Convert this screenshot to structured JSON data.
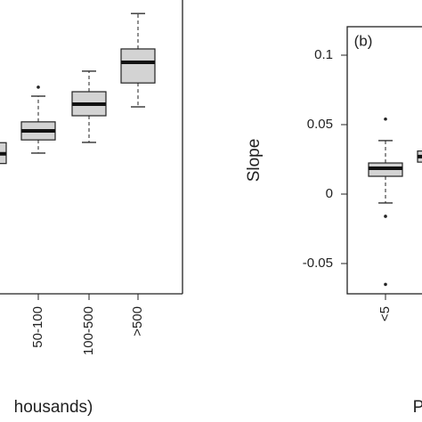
{
  "chart_data": [
    {
      "type": "box",
      "xlabel": "housands)",
      "categories": [
        null,
        "50-100",
        "100-500",
        ">500"
      ],
      "boxes": [
        {
          "whisker_low": null,
          "q1": 0.022,
          "median": 0.029,
          "q3": 0.037,
          "whisker_high": null,
          "outliers": []
        },
        {
          "whisker_low": 0.0295,
          "q1": 0.039,
          "median": 0.0455,
          "q3": 0.052,
          "whisker_high": 0.0705,
          "outliers": [
            0.077
          ]
        },
        {
          "whisker_low": 0.0372,
          "q1": 0.0564,
          "median": 0.0647,
          "q3": 0.0737,
          "whisker_high": 0.0885,
          "outliers": []
        },
        {
          "whisker_low": 0.0628,
          "q1": 0.08,
          "median": 0.0949,
          "q3": 0.1045,
          "whisker_high": 0.13,
          "outliers": []
        }
      ],
      "color": "#d3d3d3",
      "ylim": [
        -0.0718,
        0.1205
      ]
    },
    {
      "type": "box",
      "title": "(b)",
      "ylabel": "Slope",
      "xlabel": "P",
      "categories": [
        "<5",
        null
      ],
      "boxes": [
        {
          "whisker_low": -0.0064,
          "q1": 0.0128,
          "median": 0.0186,
          "q3": 0.0224,
          "whisker_high": 0.0385,
          "outliers": [
            0.054,
            -0.016,
            -0.065
          ]
        },
        {
          "whisker_low": null,
          "q1": 0.023,
          "median": 0.027,
          "q3": 0.031,
          "whisker_high": null,
          "outliers": []
        }
      ],
      "color": "#d3d3d3",
      "ylim": [
        -0.0718,
        0.1205
      ],
      "yticks": [
        0.1,
        0.05,
        0,
        -0.05
      ]
    }
  ]
}
